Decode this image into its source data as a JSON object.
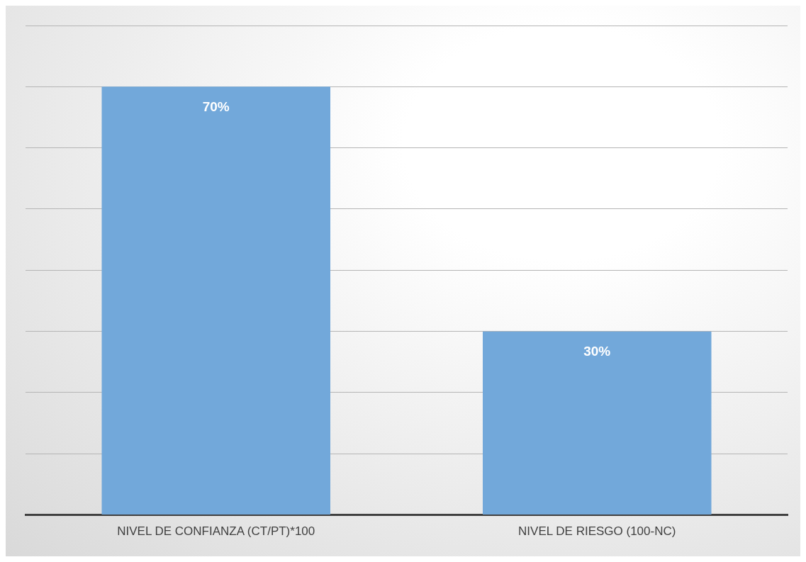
{
  "chart_data": {
    "type": "bar",
    "categories": [
      "NIVEL DE CONFIANZA (CT/PT)*100",
      "NIVEL DE RIESGO (100-NC)"
    ],
    "values": [
      70,
      30
    ],
    "color": "#72a8da",
    "value_labels": [
      "70%",
      "30%"
    ],
    "ylim": [
      0,
      80
    ],
    "yticks": [
      {
        "value": 0,
        "label": null
      },
      {
        "value": 10,
        "label": null
      },
      {
        "value": 20,
        "label": null
      },
      {
        "value": 30,
        "label": null
      },
      {
        "value": 40,
        "label": null
      },
      {
        "value": 50,
        "label": null
      },
      {
        "value": 60,
        "label": null
      },
      {
        "value": 70,
        "label": null
      },
      {
        "value": 80,
        "label": null
      }
    ],
    "grid": "y",
    "tick_labels": "x",
    "legend": false
  }
}
